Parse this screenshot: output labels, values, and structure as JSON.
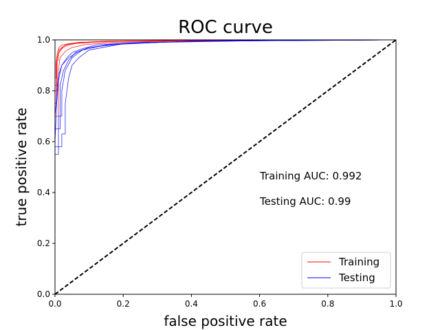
{
  "chart_data": {
    "type": "line",
    "title": "ROC curve",
    "xlabel": "false positive rate",
    "ylabel": "true positive rate",
    "xlim": [
      0,
      1
    ],
    "ylim": [
      0,
      1
    ],
    "xticks": [
      "0.0",
      "0.2",
      "0.4",
      "0.6",
      "0.8",
      "1.0"
    ],
    "yticks": [
      "0.0",
      "0.2",
      "0.4",
      "0.6",
      "0.8",
      "1.0"
    ],
    "grid": false,
    "legend_position": "bottom-right",
    "annotations": [
      "Training AUC: 0.992",
      "Testing AUC: 0.99"
    ],
    "reference_line": {
      "style": "dashed",
      "color": "#000000",
      "x": [
        0,
        1
      ],
      "y": [
        0,
        1
      ]
    },
    "series": [
      {
        "name": "Training",
        "color": "#ff0000",
        "curves": [
          {
            "x": [
              0,
              0,
              0.005,
              0.005,
              0.01,
              0.01,
              0.02,
              0.03,
              0.05,
              0.1,
              0.2,
              0.4,
              1.0
            ],
            "y": [
              0,
              0.8,
              0.8,
              0.92,
              0.92,
              0.96,
              0.97,
              0.98,
              0.985,
              0.99,
              0.995,
              0.998,
              1.0
            ]
          },
          {
            "x": [
              0,
              0,
              0.004,
              0.004,
              0.008,
              0.015,
              0.025,
              0.04,
              0.08,
              0.15,
              0.3,
              0.6,
              1.0
            ],
            "y": [
              0,
              0.75,
              0.75,
              0.9,
              0.94,
              0.96,
              0.975,
              0.985,
              0.99,
              0.994,
              0.997,
              0.999,
              1.0
            ]
          },
          {
            "x": [
              0,
              0,
              0.006,
              0.006,
              0.012,
              0.02,
              0.035,
              0.06,
              0.12,
              0.25,
              0.5,
              1.0
            ],
            "y": [
              0,
              0.82,
              0.82,
              0.93,
              0.95,
              0.965,
              0.978,
              0.986,
              0.992,
              0.996,
              0.999,
              1.0
            ]
          },
          {
            "x": [
              0,
              0,
              0.01,
              0.01,
              0.015,
              0.03,
              0.05,
              0.09,
              0.18,
              0.35,
              1.0
            ],
            "y": [
              0,
              0.7,
              0.7,
              0.88,
              0.93,
              0.955,
              0.97,
              0.982,
              0.99,
              0.996,
              1.0
            ]
          },
          {
            "x": [
              0,
              0,
              0.003,
              0.003,
              0.007,
              0.012,
              0.02,
              0.04,
              0.07,
              0.14,
              0.28,
              0.55,
              1.0
            ],
            "y": [
              0,
              0.85,
              0.85,
              0.91,
              0.95,
              0.97,
              0.98,
              0.985,
              0.99,
              0.994,
              0.997,
              0.999,
              1.0
            ]
          }
        ]
      },
      {
        "name": "Testing",
        "color": "#0000ff",
        "curves": [
          {
            "x": [
              0,
              0,
              0.01,
              0.01,
              0.02,
              0.02,
              0.03,
              0.05,
              0.08,
              0.15,
              0.3,
              0.6,
              1.0
            ],
            "y": [
              0,
              0.55,
              0.55,
              0.7,
              0.7,
              0.8,
              0.88,
              0.93,
              0.96,
              0.98,
              0.99,
              0.997,
              1.0
            ]
          },
          {
            "x": [
              0,
              0,
              0.02,
              0.02,
              0.03,
              0.03,
              0.04,
              0.05,
              0.07,
              0.1,
              0.2,
              0.4,
              1.0
            ],
            "y": [
              0,
              0.58,
              0.58,
              0.63,
              0.63,
              0.75,
              0.85,
              0.9,
              0.93,
              0.96,
              0.985,
              0.995,
              1.0
            ]
          },
          {
            "x": [
              0,
              0,
              0.015,
              0.015,
              0.025,
              0.04,
              0.06,
              0.1,
              0.2,
              0.4,
              1.0
            ],
            "y": [
              0,
              0.65,
              0.65,
              0.82,
              0.88,
              0.92,
              0.95,
              0.97,
              0.985,
              0.995,
              1.0
            ]
          },
          {
            "x": [
              0,
              0,
              0.01,
              0.02,
              0.035,
              0.05,
              0.08,
              0.12,
              0.25,
              0.5,
              1.0
            ],
            "y": [
              0,
              0.7,
              0.86,
              0.9,
              0.93,
              0.95,
              0.965,
              0.98,
              0.99,
              0.997,
              1.0
            ]
          },
          {
            "x": [
              0,
              0,
              0.005,
              0.01,
              0.02,
              0.04,
              0.07,
              0.1,
              0.18,
              0.35,
              0.7,
              1.0
            ],
            "y": [
              0,
              0.6,
              0.75,
              0.84,
              0.9,
              0.93,
              0.955,
              0.97,
              0.985,
              0.993,
              0.998,
              1.0
            ]
          }
        ]
      }
    ]
  }
}
